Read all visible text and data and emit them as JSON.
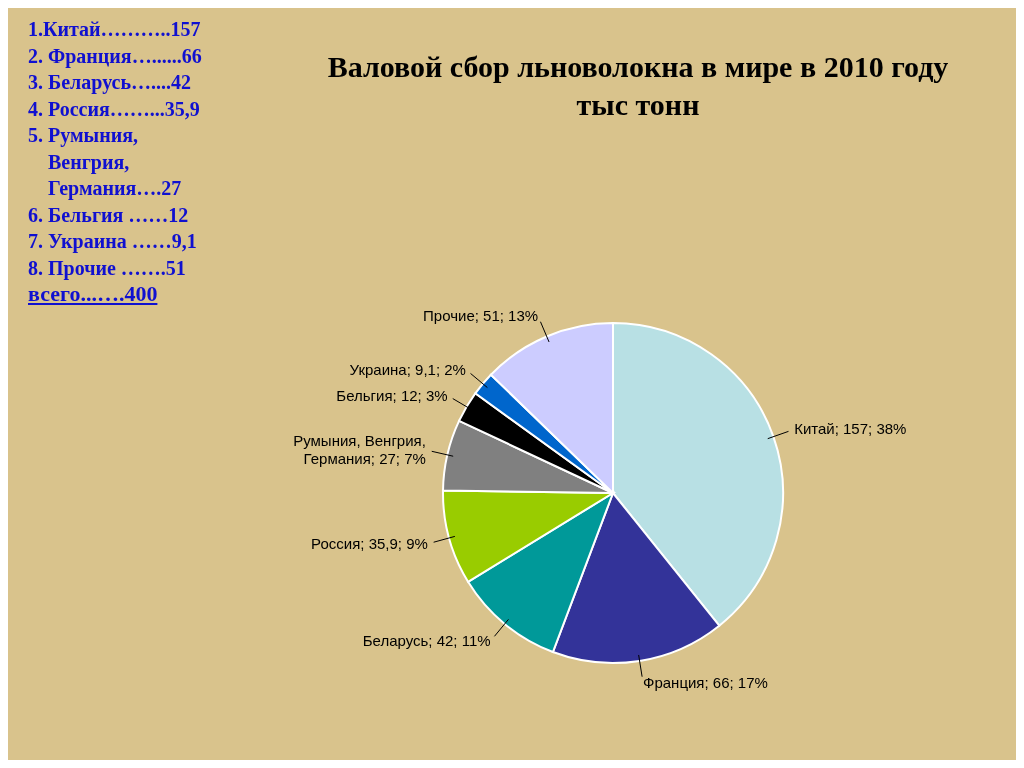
{
  "chart_data": {
    "type": "pie",
    "title": "Валовой сбор льноволокна в мире в 2010 году",
    "subtitle": "тыс тонн",
    "categories": [
      "Китай",
      "Франция",
      "Беларусь",
      "Россия",
      "Румыния, Венгрия, Германия",
      "Бельгия",
      "Украина",
      "Прочие"
    ],
    "values": [
      157,
      66,
      42,
      35.9,
      27,
      12,
      9.1,
      51
    ],
    "colors": [
      "#b8e0e4",
      "#333399",
      "#009999",
      "#99cc00",
      "#808080",
      "#000000",
      "#0066cc",
      "#ccccff"
    ],
    "value_labels": [
      "157; 38%",
      "66; 17%",
      "42; 11%",
      "35,9; 9%",
      "27; 7%",
      "12; 3%",
      "9,1; 2%",
      "51; 13%"
    ],
    "annotations": [
      "1.Китай………..157",
      "2. Франция…......66",
      "3. Беларусь…....42",
      "4. Россия……...35,9",
      "5. Румыния,",
      "Венгрия,",
      "Германия….27",
      "6. Бельгия ……12",
      "7. Украина ……9,1",
      "8. Прочие …….51",
      "всего...….400"
    ]
  }
}
